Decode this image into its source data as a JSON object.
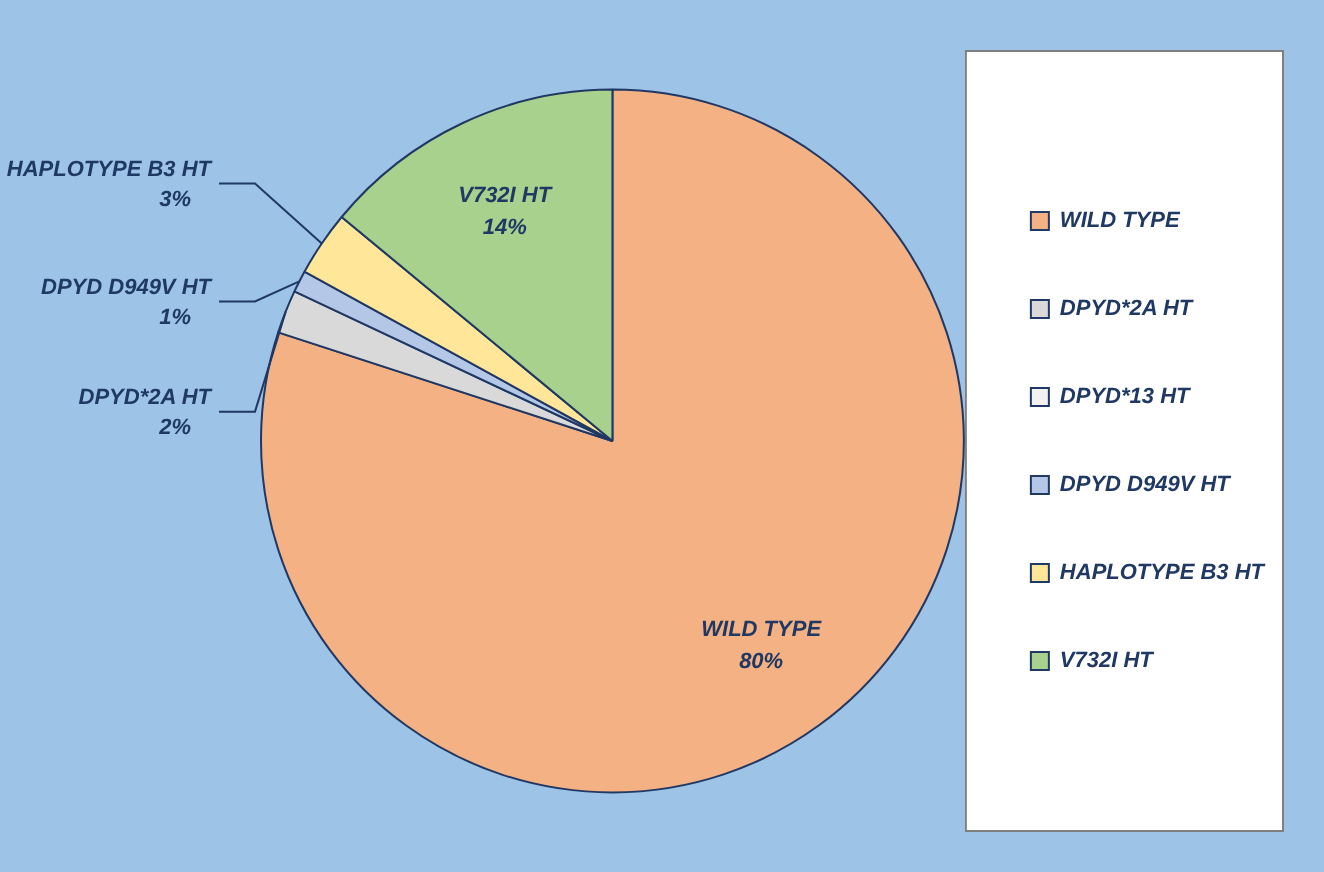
{
  "chart_data": {
    "type": "pie",
    "categories": [
      "WILD TYPE",
      "DPYD*2A HT",
      "DPYD*13 HT",
      "DPYD D949V HT",
      "HAPLOTYPE B3 HT",
      "V732I HT"
    ],
    "values": [
      80,
      2,
      0,
      1,
      3,
      14
    ],
    "colors": [
      "#f4b183",
      "#d9d9d9",
      "#f2f2f2",
      "#b4c7e7",
      "#ffe699",
      "#a9d18e"
    ],
    "value_labels": [
      "80%",
      "2%",
      null,
      "1%",
      "3%",
      "14%"
    ],
    "legend": "right"
  }
}
